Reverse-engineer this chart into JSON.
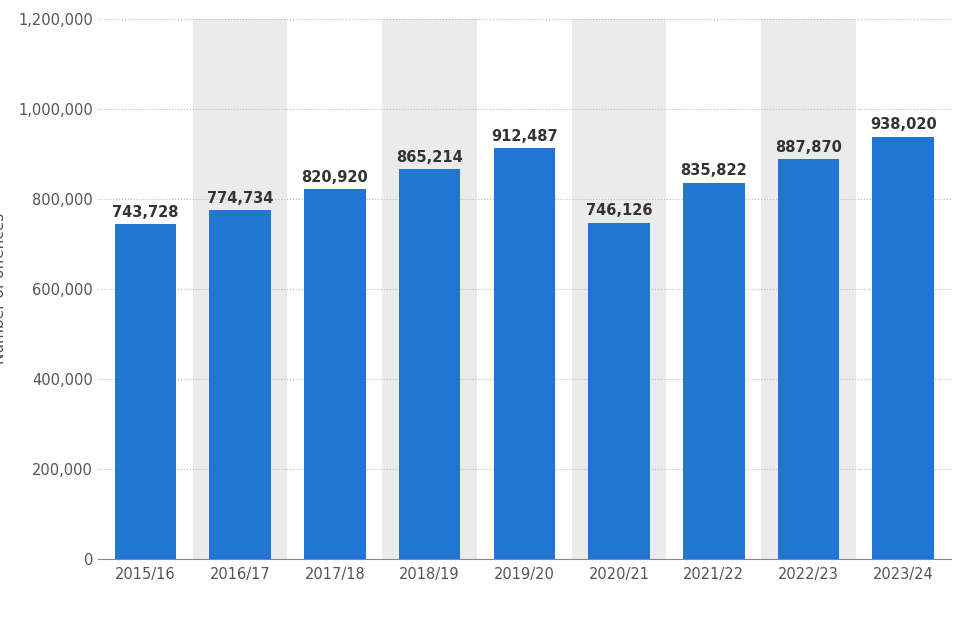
{
  "categories": [
    "2015/16",
    "2016/17",
    "2017/18",
    "2018/19",
    "2019/20",
    "2020/21",
    "2021/22",
    "2022/23",
    "2023/24"
  ],
  "values": [
    743728,
    774734,
    820920,
    865214,
    912487,
    746126,
    835822,
    887870,
    938020
  ],
  "bar_color": "#2176d4",
  "ylabel": "Number of offences",
  "ylim": [
    0,
    1200000
  ],
  "yticks": [
    0,
    200000,
    400000,
    600000,
    800000,
    1000000,
    1200000
  ],
  "background_color": "#ffffff",
  "grid_color": "#bbbbbb",
  "label_color": "#555555",
  "bar_label_color": "#333333",
  "alternating_bg": [
    "#ffffff",
    "#ebebeb"
  ],
  "bar_width": 0.65,
  "label_fontsize": 11,
  "tick_fontsize": 10.5,
  "value_fontsize": 10.5
}
